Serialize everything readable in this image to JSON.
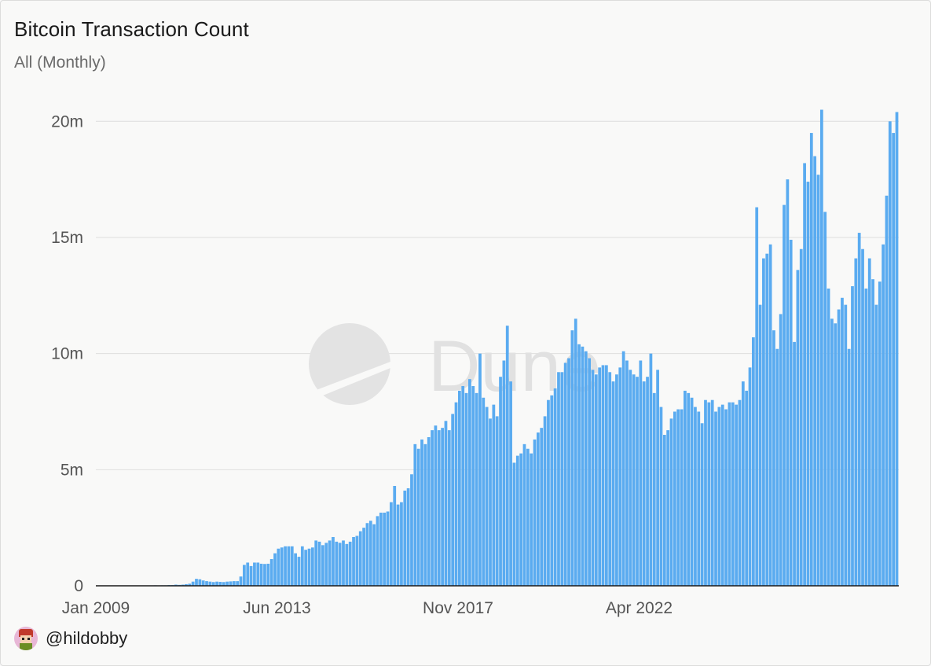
{
  "header": {
    "title": "Bitcoin Transaction Count",
    "subtitle": "All (Monthly)"
  },
  "footer": {
    "handle": "@hildobby",
    "avatar_icon": "pixel-avatar-icon"
  },
  "watermark": {
    "text": "Dune",
    "icon": "dune-logo-icon"
  },
  "colors": {
    "bar": "#5aabf0",
    "grid": "#dedede",
    "axis": "#1a1a1a",
    "background": "#f9f9f8"
  },
  "chart_data": {
    "type": "bar",
    "x_start": "Jan 2009",
    "x_interval": "monthly",
    "x_tick_labels": [
      "Jan 2009",
      "Jun 2013",
      "Nov 2017",
      "Apr 2022"
    ],
    "y_tick_labels": [
      "0",
      "5m",
      "10m",
      "15m",
      "20m"
    ],
    "y_ticks": [
      0,
      5000000,
      10000000,
      15000000,
      20000000
    ],
    "ylim": [
      0,
      21500000
    ],
    "grid": true,
    "values": [
      0,
      0,
      0,
      0,
      0,
      0,
      0,
      0,
      0,
      0,
      0,
      0,
      0,
      0,
      10000,
      10000,
      10000,
      20000,
      10000,
      20000,
      20000,
      30000,
      30000,
      50000,
      40000,
      50000,
      70000,
      90000,
      180000,
      300000,
      280000,
      230000,
      200000,
      180000,
      160000,
      180000,
      170000,
      160000,
      180000,
      190000,
      200000,
      200000,
      400000,
      900000,
      1000000,
      850000,
      1000000,
      1000000,
      950000,
      940000,
      950000,
      1150000,
      1400000,
      1600000,
      1650000,
      1700000,
      1700000,
      1700000,
      1400000,
      1250000,
      1700000,
      1550000,
      1600000,
      1650000,
      1950000,
      1900000,
      1750000,
      1850000,
      1950000,
      2100000,
      1900000,
      1850000,
      1950000,
      1800000,
      1900000,
      2100000,
      2150000,
      2350000,
      2500000,
      2700000,
      2800000,
      2650000,
      3000000,
      3150000,
      3150000,
      3200000,
      3600000,
      4300000,
      3500000,
      3600000,
      4100000,
      4200000,
      4800000,
      6100000,
      5900000,
      6300000,
      6100000,
      6400000,
      6700000,
      6900000,
      6700000,
      6800000,
      7100000,
      6700000,
      7400000,
      7900000,
      8400000,
      8600000,
      8300000,
      8900000,
      8600000,
      8300000,
      10000000,
      8100000,
      7700000,
      7200000,
      7800000,
      7300000,
      9000000,
      9700000,
      11200000,
      8800000,
      5300000,
      5600000,
      5700000,
      6100000,
      5900000,
      5700000,
      6300000,
      6600000,
      6800000,
      7300000,
      8000000,
      8200000,
      8500000,
      9200000,
      9200000,
      9600000,
      9800000,
      11000000,
      11500000,
      10400000,
      10300000,
      10100000,
      9800000,
      9300000,
      9100000,
      9400000,
      9500000,
      9500000,
      9200000,
      8800000,
      9100000,
      9400000,
      10100000,
      9700000,
      9300000,
      9100000,
      9000000,
      9700000,
      8800000,
      9000000,
      10000000,
      8300000,
      9300000,
      7700000,
      6500000,
      6700000,
      7200000,
      7500000,
      7600000,
      7600000,
      8400000,
      8300000,
      8100000,
      7700000,
      7500000,
      7000000,
      8000000,
      7900000,
      8000000,
      7500000,
      7700000,
      7800000,
      7600000,
      7900000,
      7900000,
      7800000,
      8000000,
      8800000,
      8400000,
      9400000,
      10700000,
      16300000,
      12100000,
      14100000,
      14300000,
      14700000,
      11000000,
      10200000,
      11700000,
      16400000,
      17500000,
      14900000,
      10500000,
      13600000,
      14500000,
      18200000,
      17400000,
      19500000,
      18500000,
      17700000,
      20500000,
      16100000,
      12800000,
      11500000,
      11300000,
      11900000,
      12400000,
      12100000,
      10200000,
      12900000,
      14100000,
      15200000,
      14500000,
      12800000,
      14100000,
      13200000,
      12100000,
      13100000,
      14700000,
      16800000,
      20000000,
      19500000,
      20400000
    ]
  }
}
